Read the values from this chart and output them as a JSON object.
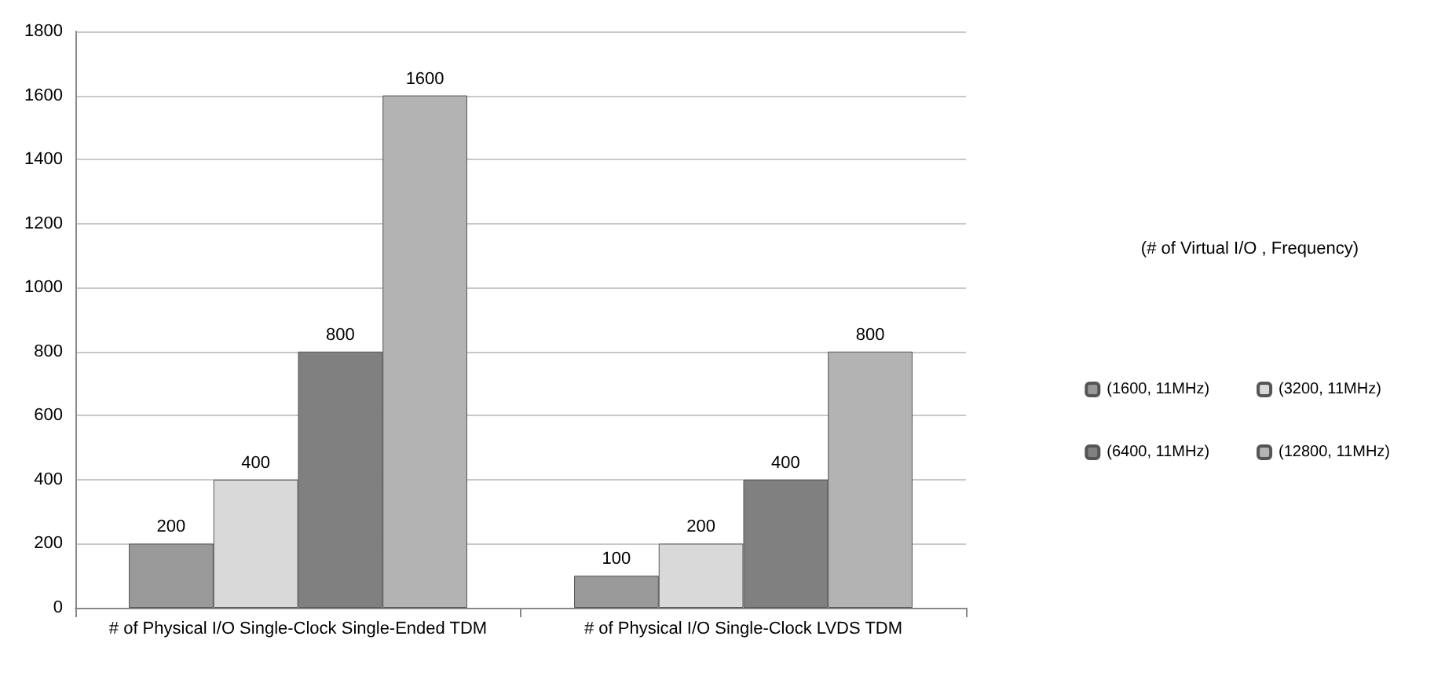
{
  "chart_data": {
    "type": "bar",
    "legend_title": "(# of Virtual I/O , Frequency)",
    "categories": [
      "# of Physical I/O Single-Clock Single-Ended TDM",
      "# of Physical I/O Single-Clock LVDS TDM"
    ],
    "series": [
      {
        "name": "(1600, 11MHz)",
        "color": "#9a9a9a",
        "values": [
          200,
          100
        ]
      },
      {
        "name": "(3200, 11MHz)",
        "color": "#d9d9d9",
        "values": [
          400,
          200
        ]
      },
      {
        "name": "(6400, 11MHz)",
        "color": "#808080",
        "values": [
          800,
          400
        ]
      },
      {
        "name": "(12800, 11MHz)",
        "color": "#b3b3b3",
        "values": [
          1600,
          800
        ]
      }
    ],
    "ylim": [
      0,
      1800
    ],
    "yticks": [
      0,
      200,
      400,
      600,
      800,
      1000,
      1200,
      1400,
      1600,
      1800
    ],
    "grid": "y",
    "legend": "right",
    "data_labels": true
  }
}
